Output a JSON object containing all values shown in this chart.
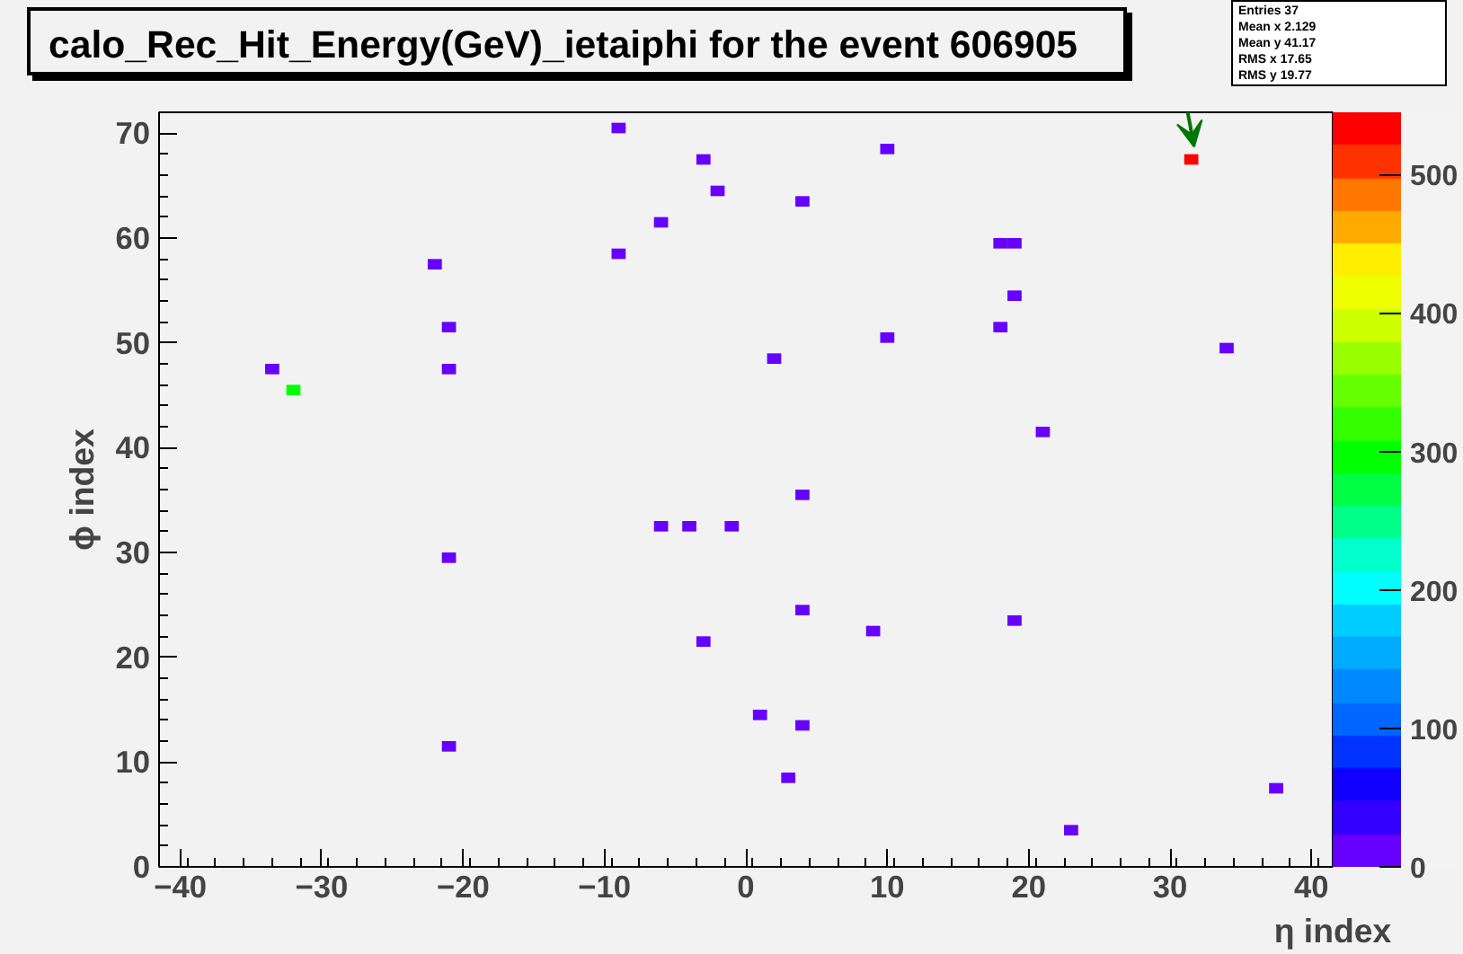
{
  "chart_data": {
    "type": "scatter",
    "title": "calo_Rec_Hit_Energy(GeV)_ietaiphi for the event 606905",
    "xlabel": "η index",
    "ylabel": "ϕ index",
    "marker": "square",
    "grid": false,
    "x": [
      -9,
      -3,
      -2,
      10,
      31.5,
      -6,
      4,
      -22,
      -9,
      18,
      19,
      19,
      -21,
      18,
      10,
      34,
      2,
      -33.5,
      -21,
      -32,
      21,
      4,
      -6,
      -4,
      -1,
      -21,
      4,
      9,
      19,
      -3,
      1,
      4,
      -21,
      3,
      37.5,
      23
    ],
    "values": [
      70.5,
      67.5,
      64.5,
      68.5,
      67.5,
      61.5,
      63.5,
      57.5,
      58.5,
      59.5,
      59.5,
      54.5,
      51.5,
      51.5,
      50.5,
      49.5,
      48.5,
      47.5,
      47.5,
      45.5,
      41.5,
      35.5,
      32.5,
      32.5,
      32.5,
      29.5,
      24.5,
      22.5,
      23.5,
      21.5,
      14.5,
      13.5,
      11.5,
      8.5,
      7.5,
      3.5
    ],
    "cvalues": [
      15,
      15,
      15,
      15,
      530,
      15,
      15,
      15,
      15,
      15,
      15,
      15,
      15,
      15,
      15,
      15,
      15,
      15,
      15,
      290,
      15,
      15,
      15,
      15,
      15,
      15,
      15,
      15,
      15,
      15,
      15,
      15,
      15,
      15,
      15,
      15
    ],
    "xlim": [
      -41.5,
      41.5
    ],
    "ylim": [
      0,
      72
    ],
    "xticks": [
      -40,
      -30,
      -20,
      -10,
      0,
      10,
      20,
      30,
      40
    ],
    "yticks": [
      0,
      10,
      20,
      30,
      40,
      50,
      60,
      70
    ],
    "clim": [
      0,
      545
    ],
    "cticks": [
      0,
      100,
      200,
      300,
      400,
      500
    ],
    "annotations": [
      "Entries 37",
      "Mean x 2.129",
      "Mean y 41.17",
      "RMS x 17.65",
      "RMS y 19.77"
    ]
  }
}
